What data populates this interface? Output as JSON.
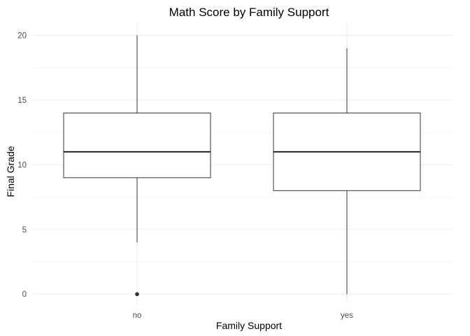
{
  "chart_data": {
    "type": "boxplot",
    "title": "Math Score by Family Support",
    "xlabel": "Family Support",
    "ylabel": "Final Grade",
    "categories": [
      "no",
      "yes"
    ],
    "ylim": [
      -0.8,
      21
    ],
    "yticks": [
      0,
      5,
      10,
      15,
      20
    ],
    "grid": true,
    "legend": "none",
    "boxes": [
      {
        "category": "no",
        "min": 4,
        "q1": 9,
        "median": 11,
        "q3": 14,
        "max": 20,
        "outliers": [
          0
        ]
      },
      {
        "category": "yes",
        "min": 0,
        "q1": 8,
        "median": 11,
        "q3": 14,
        "max": 19,
        "outliers": []
      }
    ]
  }
}
